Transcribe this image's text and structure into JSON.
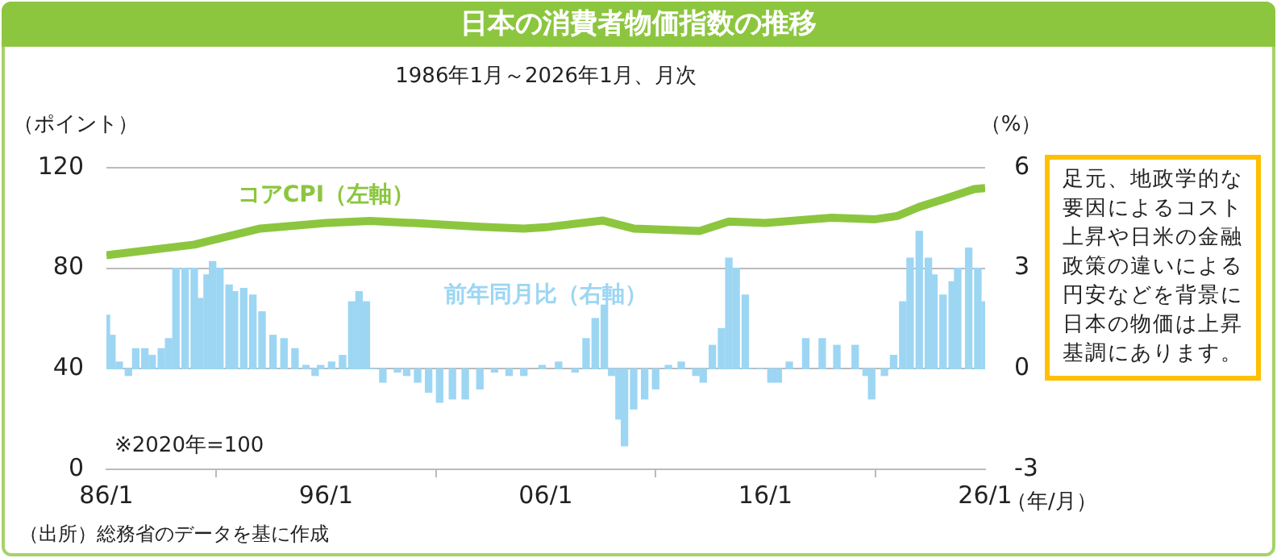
{
  "chart_data": {
    "type": "bar",
    "title": "日本の消費者物価指数の推移",
    "subtitle": "1986年1月～2026年1月、月次",
    "xlabel": "（年/月）",
    "ylabel": "（ポイント）",
    "y2label": "（%）",
    "annotations": [
      "※2020年=100",
      "（出所）総務省のデータを基に作成",
      "足元、地政学的な要因によるコスト上昇や日米の金融政策の違いによる円安などを背景に日本の物価は上昇基調にあります。"
    ],
    "xlim": [
      "1986-01",
      "2026-01"
    ],
    "xticks": [
      {
        "value": "1986-01",
        "label": "86/1"
      },
      {
        "value": "1996-01",
        "label": "96/1"
      },
      {
        "value": "2006-01",
        "label": "06/1"
      },
      {
        "value": "2016-01",
        "label": "16/1"
      },
      {
        "value": "2026-01",
        "label": "26/1"
      }
    ],
    "ylim": [
      0,
      120
    ],
    "yticks": [
      0,
      40,
      80,
      120
    ],
    "y2lim": [
      -3,
      6
    ],
    "y2ticks": [
      -3,
      0,
      3,
      6
    ],
    "grid": "y",
    "legend": false,
    "series": [
      {
        "name": "前年同月比（右軸）",
        "type": "bar",
        "axis": "y2",
        "color": "#9dd6f3",
        "x": [
          "1986-01",
          "1986-04",
          "1986-08",
          "1987-01",
          "1987-05",
          "1987-10",
          "1988-02",
          "1988-07",
          "1988-11",
          "1989-03",
          "1989-08",
          "1990-01",
          "1990-04",
          "1990-08",
          "1990-11",
          "1991-03",
          "1991-08",
          "1991-11",
          "1992-04",
          "1992-09",
          "1993-02",
          "1993-08",
          "1994-02",
          "1994-08",
          "1995-02",
          "1995-07",
          "1995-10",
          "1996-04",
          "1996-10",
          "1997-03",
          "1997-07",
          "1997-11",
          "1998-03",
          "1998-08",
          "1999-04",
          "1999-09",
          "2000-03",
          "2000-09",
          "2001-03",
          "2001-10",
          "2002-05",
          "2003-01",
          "2003-09",
          "2004-05",
          "2005-01",
          "2005-11",
          "2006-08",
          "2007-05",
          "2007-11",
          "2008-04",
          "2008-09",
          "2009-01",
          "2009-05",
          "2009-08",
          "2010-01",
          "2010-07",
          "2011-01",
          "2011-08",
          "2012-03",
          "2012-11",
          "2013-03",
          "2013-08",
          "2014-01",
          "2014-05",
          "2014-09",
          "2015-02",
          "2015-04",
          "2015-10",
          "2016-04",
          "2016-08",
          "2017-02",
          "2017-11",
          "2018-08",
          "2019-04",
          "2020-02",
          "2020-08",
          "2020-11",
          "2021-06",
          "2021-11",
          "2022-04",
          "2022-08",
          "2023-01",
          "2023-06",
          "2023-09",
          "2024-02",
          "2024-07",
          "2024-10",
          "2025-04",
          "2025-09",
          "2026-01"
        ],
        "values": [
          1.6,
          1.0,
          0.2,
          -0.2,
          0.6,
          0.6,
          0.4,
          0.6,
          0.9,
          3.0,
          3.0,
          3.0,
          2.1,
          2.8,
          3.2,
          3.0,
          2.5,
          2.3,
          2.4,
          2.2,
          1.7,
          1.0,
          0.9,
          0.6,
          0.1,
          -0.2,
          0.1,
          0.2,
          0.4,
          2.0,
          2.3,
          2.0,
          0.0,
          -0.4,
          -0.1,
          -0.2,
          -0.4,
          -0.7,
          -1.0,
          -0.9,
          -0.9,
          -0.6,
          -0.1,
          -0.2,
          -0.2,
          0.1,
          0.2,
          -0.1,
          0.9,
          1.5,
          1.9,
          -0.2,
          -1.5,
          -2.3,
          -1.2,
          -0.9,
          -0.6,
          0.1,
          0.2,
          -0.2,
          -0.4,
          0.7,
          1.2,
          3.3,
          3.0,
          2.2,
          0.0,
          0.0,
          -0.4,
          -0.4,
          0.2,
          0.9,
          0.9,
          0.7,
          0.7,
          -0.2,
          -0.9,
          -0.2,
          0.4,
          2.0,
          3.3,
          4.1,
          3.3,
          2.8,
          2.2,
          2.6,
          3.0,
          3.6,
          3.0,
          2.0
        ]
      },
      {
        "name": "コアCPI（左軸）",
        "type": "line",
        "color": "#8cc63f",
        "x": [
          "1986-01",
          "1990-01",
          "1993-01",
          "1996-01",
          "1998-01",
          "2000-01",
          "2003-01",
          "2005-01",
          "2006-01",
          "2008-08",
          "2010-01",
          "2013-01",
          "2014-05",
          "2016-01",
          "2019-01",
          "2021-01",
          "2022-01",
          "2023-01",
          "2024-01",
          "2025-07",
          "2026-01"
        ],
        "values": [
          85.2,
          89.4,
          95.8,
          98.0,
          98.8,
          98.0,
          96.5,
          95.8,
          96.3,
          99.0,
          95.8,
          94.8,
          98.6,
          98.0,
          100.1,
          99.5,
          100.8,
          104.4,
          107.2,
          111.5,
          111.9
        ]
      }
    ]
  }
}
